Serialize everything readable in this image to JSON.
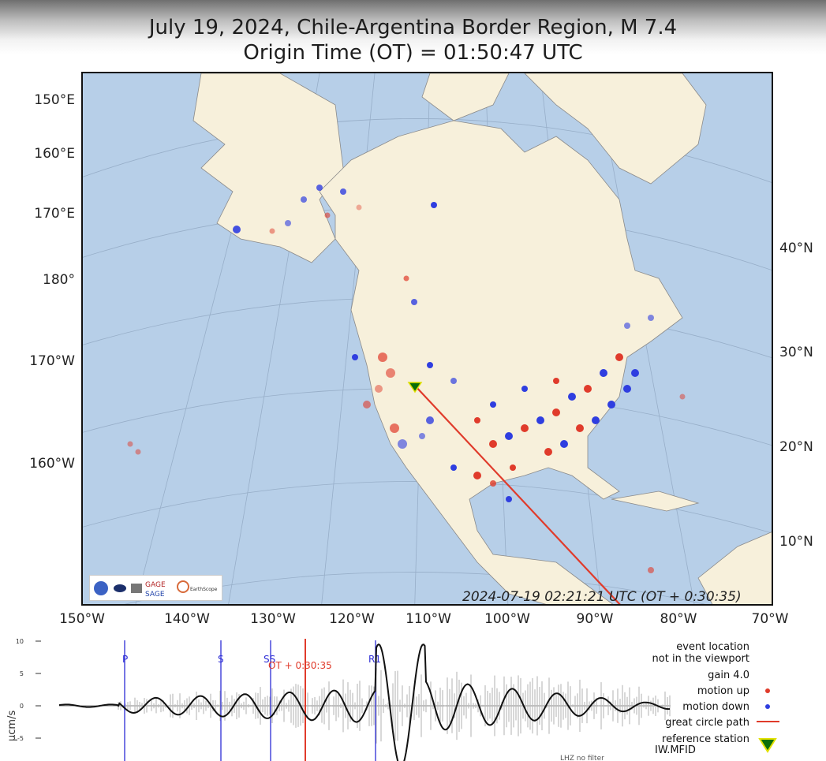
{
  "title": "July 19, 2024, Chile-Argentina Border Region, M 7.4",
  "subtitle": "Origin Time (OT) = 01:50:47 UTC",
  "map": {
    "left_axis_labels": [
      "150°E",
      "160°E",
      "170°E",
      "180°",
      "170°W",
      "160°W"
    ],
    "right_axis_labels": [
      "40°N",
      "30°N",
      "20°N",
      "10°N"
    ],
    "bottom_axis_labels": [
      "150°W",
      "140°W",
      "130°W",
      "120°W",
      "110°W",
      "100°W",
      "90°W",
      "80°W",
      "70°W"
    ],
    "timestamp": "2024-07-19 02:21:21 UTC (OT + 0:30:35)",
    "logos": [
      "GAGE",
      "SAGE",
      "EarthScope"
    ],
    "colors": {
      "ocean": "#b7cfe8",
      "land": "#f7f0db",
      "motion_up": "#e03b2b",
      "motion_down": "#2f3ee0",
      "path": "#e03b2b",
      "station": "#0a6e0a"
    }
  },
  "legend": {
    "line1": "event location",
    "line2": "not in the viewport",
    "gain": "gain  4.0",
    "motion_up": "motion up",
    "motion_down": "motion down",
    "path": "great circle path",
    "ref_station_label": "reference station",
    "ref_station_code": "IW.MFID"
  },
  "chart_data": {
    "type": "line",
    "title": "",
    "xlabel": "",
    "ylabel": "µcm/s",
    "y_ticks": [
      10,
      5,
      0,
      -5
    ],
    "phase_markers": [
      "P",
      "S",
      "SS",
      "R1"
    ],
    "current_time_label": "OT + 0:30:35",
    "footer_note": "LHZ no filter"
  }
}
